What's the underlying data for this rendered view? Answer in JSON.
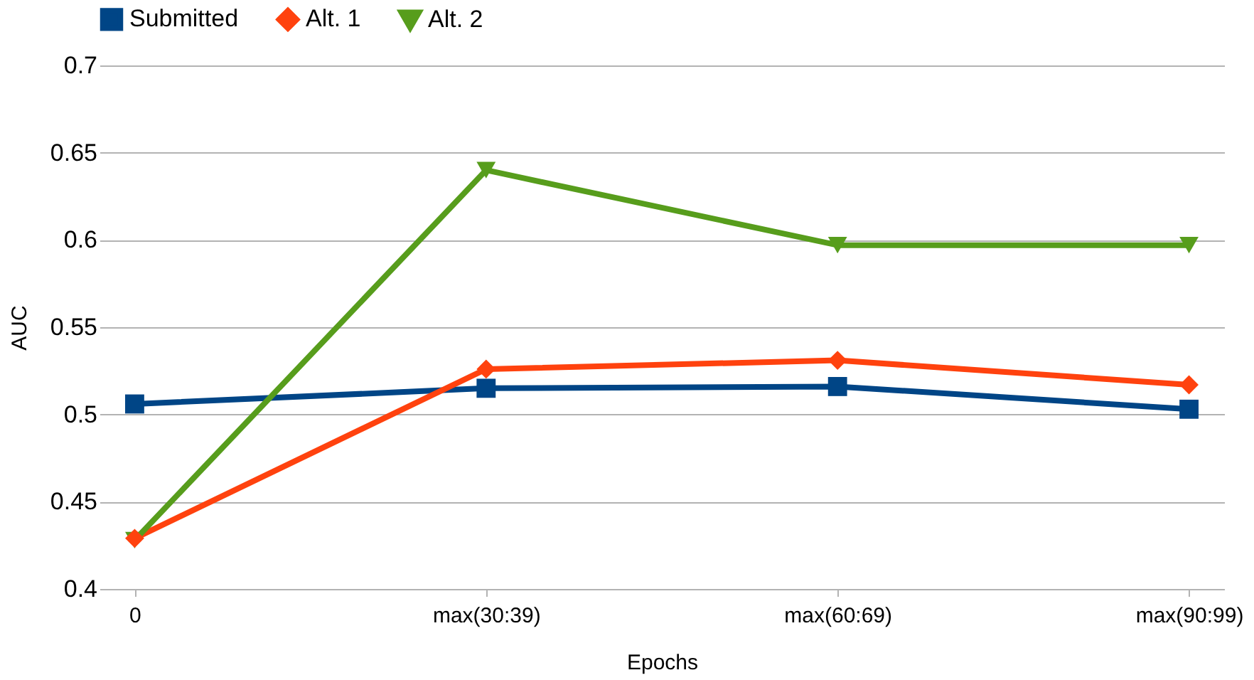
{
  "chart_data": {
    "type": "line",
    "xlabel": "Epochs",
    "ylabel": "AUC",
    "categories": [
      "0",
      "max(30:39)",
      "max(60:69)",
      "max(90:99)"
    ],
    "series": [
      {
        "name": "Submitted",
        "color": "#004586",
        "marker": "square",
        "values": [
          0.506,
          0.515,
          0.516,
          0.503
        ]
      },
      {
        "name": "Alt. 1",
        "color": "#ff420e",
        "marker": "diamond",
        "values": [
          0.429,
          0.526,
          0.531,
          0.517
        ]
      },
      {
        "name": "Alt. 2",
        "color": "#579d1c",
        "marker": "triangle",
        "values": [
          0.428,
          0.64,
          0.597,
          0.597
        ]
      }
    ],
    "ylim": [
      0.4,
      0.7
    ],
    "yticks": [
      0.4,
      0.45,
      0.5,
      0.55,
      0.6,
      0.65,
      0.7
    ],
    "grid": "y",
    "legend": "top",
    "line_style": "solid"
  }
}
